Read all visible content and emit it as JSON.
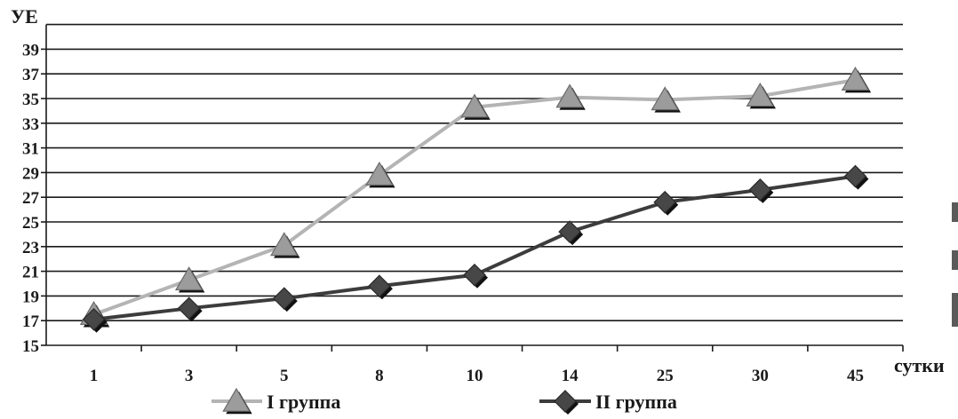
{
  "chart_data": {
    "type": "line",
    "title": "",
    "ylabel": "УЕ",
    "xlabel": "сутки",
    "categories": [
      "1",
      "3",
      "5",
      "8",
      "10",
      "14",
      "25",
      "30",
      "45"
    ],
    "ylim": [
      15,
      41
    ],
    "yticks": [
      15,
      17,
      19,
      21,
      23,
      25,
      27,
      29,
      31,
      33,
      35,
      37,
      39
    ],
    "grid": true,
    "legend_position": "bottom",
    "series": [
      {
        "name": "I группа",
        "marker": "triangle",
        "color": "#b4b4b4",
        "marker_color": "#9c9c9c",
        "values": [
          17.5,
          20.3,
          23.1,
          28.8,
          34.3,
          35.1,
          34.9,
          35.2,
          36.5
        ]
      },
      {
        "name": "II группа",
        "marker": "diamond",
        "color": "#3c3c3c",
        "marker_color": "#474747",
        "values": [
          17.1,
          18.0,
          18.8,
          19.8,
          20.7,
          24.2,
          26.6,
          27.6,
          28.7
        ]
      }
    ]
  }
}
